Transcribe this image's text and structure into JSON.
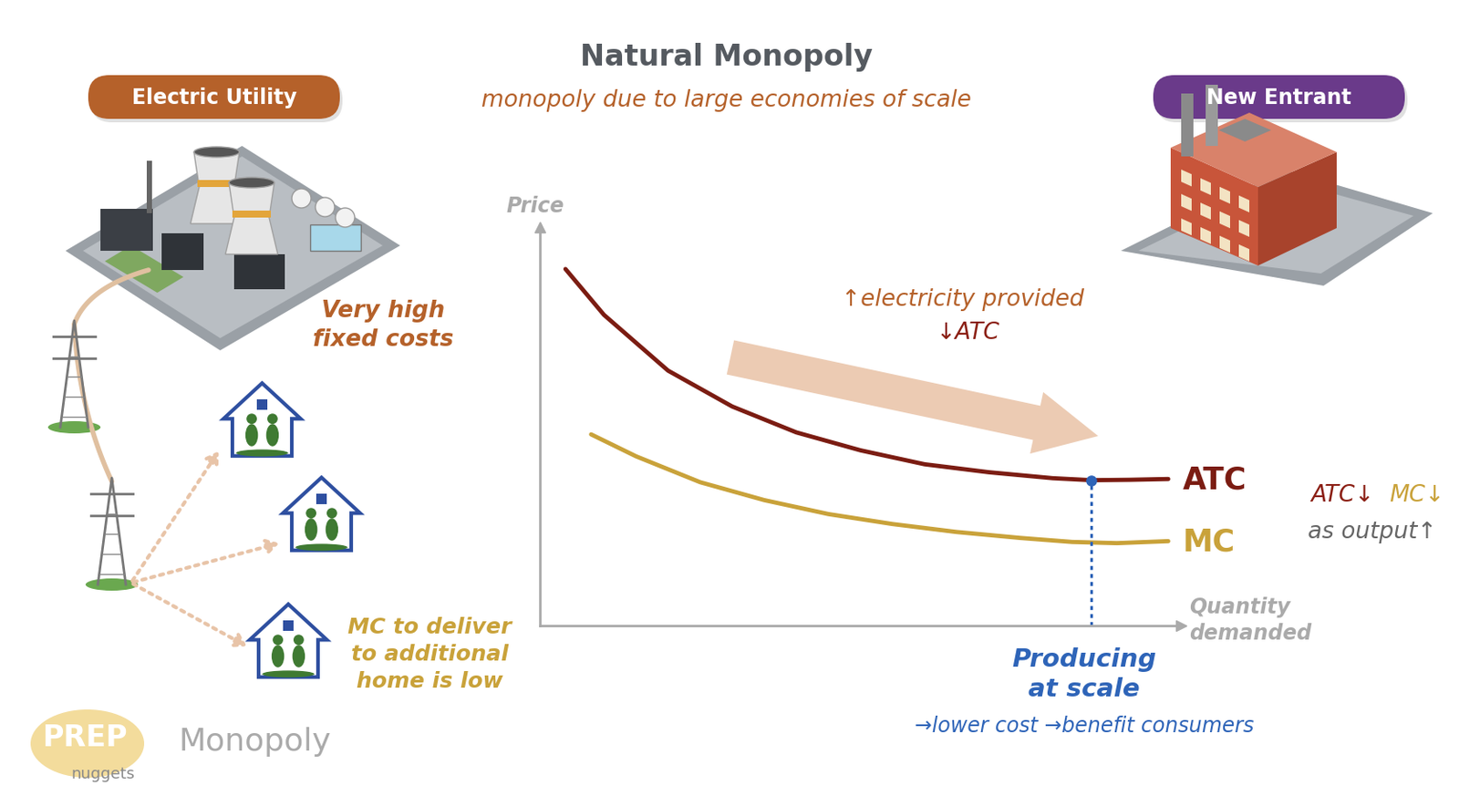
{
  "title": "Natural Monopoly",
  "subtitle": "monopoly due to large economies of scale",
  "left_panel": {
    "badge": "Electric Utility",
    "fixed_cost_note": "Very high\nfixed costs",
    "mc_note": "MC to deliver\nto additional\nhome is low"
  },
  "right_panel": {
    "badge": "New Entrant"
  },
  "chart_data": {
    "type": "line",
    "x_label": "Quantity\ndemanded",
    "y_label": "Price",
    "xlim": [
      0,
      10
    ],
    "ylim": [
      0,
      10
    ],
    "tick_labels": false,
    "series": [
      {
        "name": "ATC",
        "color": "#7b1c12",
        "x": [
          0.4,
          1,
          2,
          3,
          4,
          5,
          6,
          7,
          8,
          8.6,
          9.2,
          9.8
        ],
        "values": [
          8.95,
          7.8,
          6.4,
          5.5,
          4.85,
          4.4,
          4.05,
          3.85,
          3.7,
          3.65,
          3.66,
          3.68
        ]
      },
      {
        "name": "MC",
        "color": "#c9a23a",
        "x": [
          0.8,
          1.5,
          2.5,
          3.5,
          4.5,
          5.5,
          6.5,
          7.5,
          8.3,
          9,
          9.8
        ],
        "values": [
          4.8,
          4.25,
          3.6,
          3.15,
          2.8,
          2.55,
          2.35,
          2.2,
          2.1,
          2.07,
          2.12
        ]
      }
    ],
    "annotations": {
      "trend": [
        "↑electricity provided",
        "↓ATC"
      ],
      "side": [
        {
          "text": "ATC↓",
          "color": "#8b1f14"
        },
        {
          "text": "MC↓",
          "color": "#c9a23a"
        }
      ],
      "side_note": "as output↑",
      "scale_point": {
        "x": 8.6,
        "y": 3.65,
        "color": "#2e64b8"
      },
      "scale_label": "Producing\nat scale",
      "scale_note": "→lower cost →benefit consumers"
    }
  },
  "footer": {
    "logo": [
      "PREP",
      "nuggets"
    ],
    "topic": "Monopoly"
  }
}
